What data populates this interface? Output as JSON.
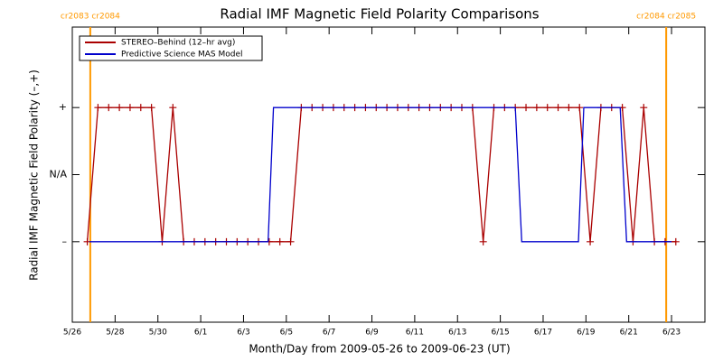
{
  "chart_data": {
    "type": "line",
    "title": "Radial IMF Magnetic Field Polarity Comparisons",
    "xlabel": "Month/Day from 2009-05-26 to 2009-06-23 (UT)",
    "ylabel": "Radial IMF Magnetic Field Polarity (–,+)",
    "xlim": [
      0,
      29.56
    ],
    "ylim": [
      -2.2,
      2.2
    ],
    "xticks": [
      {
        "value": 0,
        "label": "5/26"
      },
      {
        "value": 2,
        "label": "5/28"
      },
      {
        "value": 4,
        "label": "5/30"
      },
      {
        "value": 6,
        "label": "6/1"
      },
      {
        "value": 8,
        "label": "6/3"
      },
      {
        "value": 10,
        "label": "6/5"
      },
      {
        "value": 12,
        "label": "6/7"
      },
      {
        "value": 14,
        "label": "6/9"
      },
      {
        "value": 16,
        "label": "6/11"
      },
      {
        "value": 18,
        "label": "6/13"
      },
      {
        "value": 20,
        "label": "6/15"
      },
      {
        "value": 22,
        "label": "6/17"
      },
      {
        "value": 24,
        "label": "6/19"
      },
      {
        "value": 26,
        "label": "6/21"
      },
      {
        "value": 28,
        "label": "6/23"
      }
    ],
    "yticks": [
      {
        "value": -1,
        "label": "–"
      },
      {
        "value": 0,
        "label": "N/A"
      },
      {
        "value": 1,
        "label": "+"
      }
    ],
    "legend": "upper left",
    "annotation_color": "#ff9900",
    "annotations": [
      {
        "x": 0.84,
        "label": "cr2083 cr2084"
      },
      {
        "x": 27.75,
        "label": "cr2084 cr2085"
      }
    ],
    "series": [
      {
        "name": "STEREO–Behind (12–hr avg)",
        "color": "#aa0000",
        "markers": true,
        "x": [
          0.7,
          1.2,
          1.7,
          2.2,
          2.7,
          3.2,
          3.7,
          4.2,
          4.7,
          5.2,
          5.7,
          6.2,
          6.7,
          7.2,
          7.7,
          8.2,
          8.7,
          9.2,
          9.7,
          10.2,
          10.7,
          11.2,
          11.7,
          12.2,
          12.7,
          13.2,
          13.7,
          14.2,
          14.7,
          15.2,
          15.7,
          16.2,
          16.7,
          17.2,
          17.7,
          18.2,
          18.7,
          19.2,
          19.7,
          20.2,
          20.7,
          21.2,
          21.7,
          22.2,
          22.7,
          23.2,
          23.7,
          24.2,
          24.7,
          25.2,
          25.7,
          26.2,
          26.7,
          27.2,
          27.7,
          28.2
        ],
        "values": [
          -1,
          1,
          1,
          1,
          1,
          1,
          1,
          -1,
          1,
          -1,
          -1,
          -1,
          -1,
          -1,
          -1,
          -1,
          -1,
          -1,
          -1,
          -1,
          1,
          1,
          1,
          1,
          1,
          1,
          1,
          1,
          1,
          1,
          1,
          1,
          1,
          1,
          1,
          1,
          1,
          -1,
          1,
          1,
          1,
          1,
          1,
          1,
          1,
          1,
          1,
          -1,
          1,
          1,
          1,
          -1,
          1,
          -1,
          -1,
          -1
        ]
      },
      {
        "name": "Predictive Science MAS Model",
        "color": "#0000cc",
        "markers": false,
        "x": [
          0.8,
          9.15,
          9.4,
          20.7,
          21.0,
          23.65,
          23.9,
          25.6,
          25.9,
          28.0
        ],
        "values": [
          -1,
          -1,
          1,
          1,
          -1,
          -1,
          1,
          1,
          -1,
          -1
        ]
      }
    ]
  }
}
